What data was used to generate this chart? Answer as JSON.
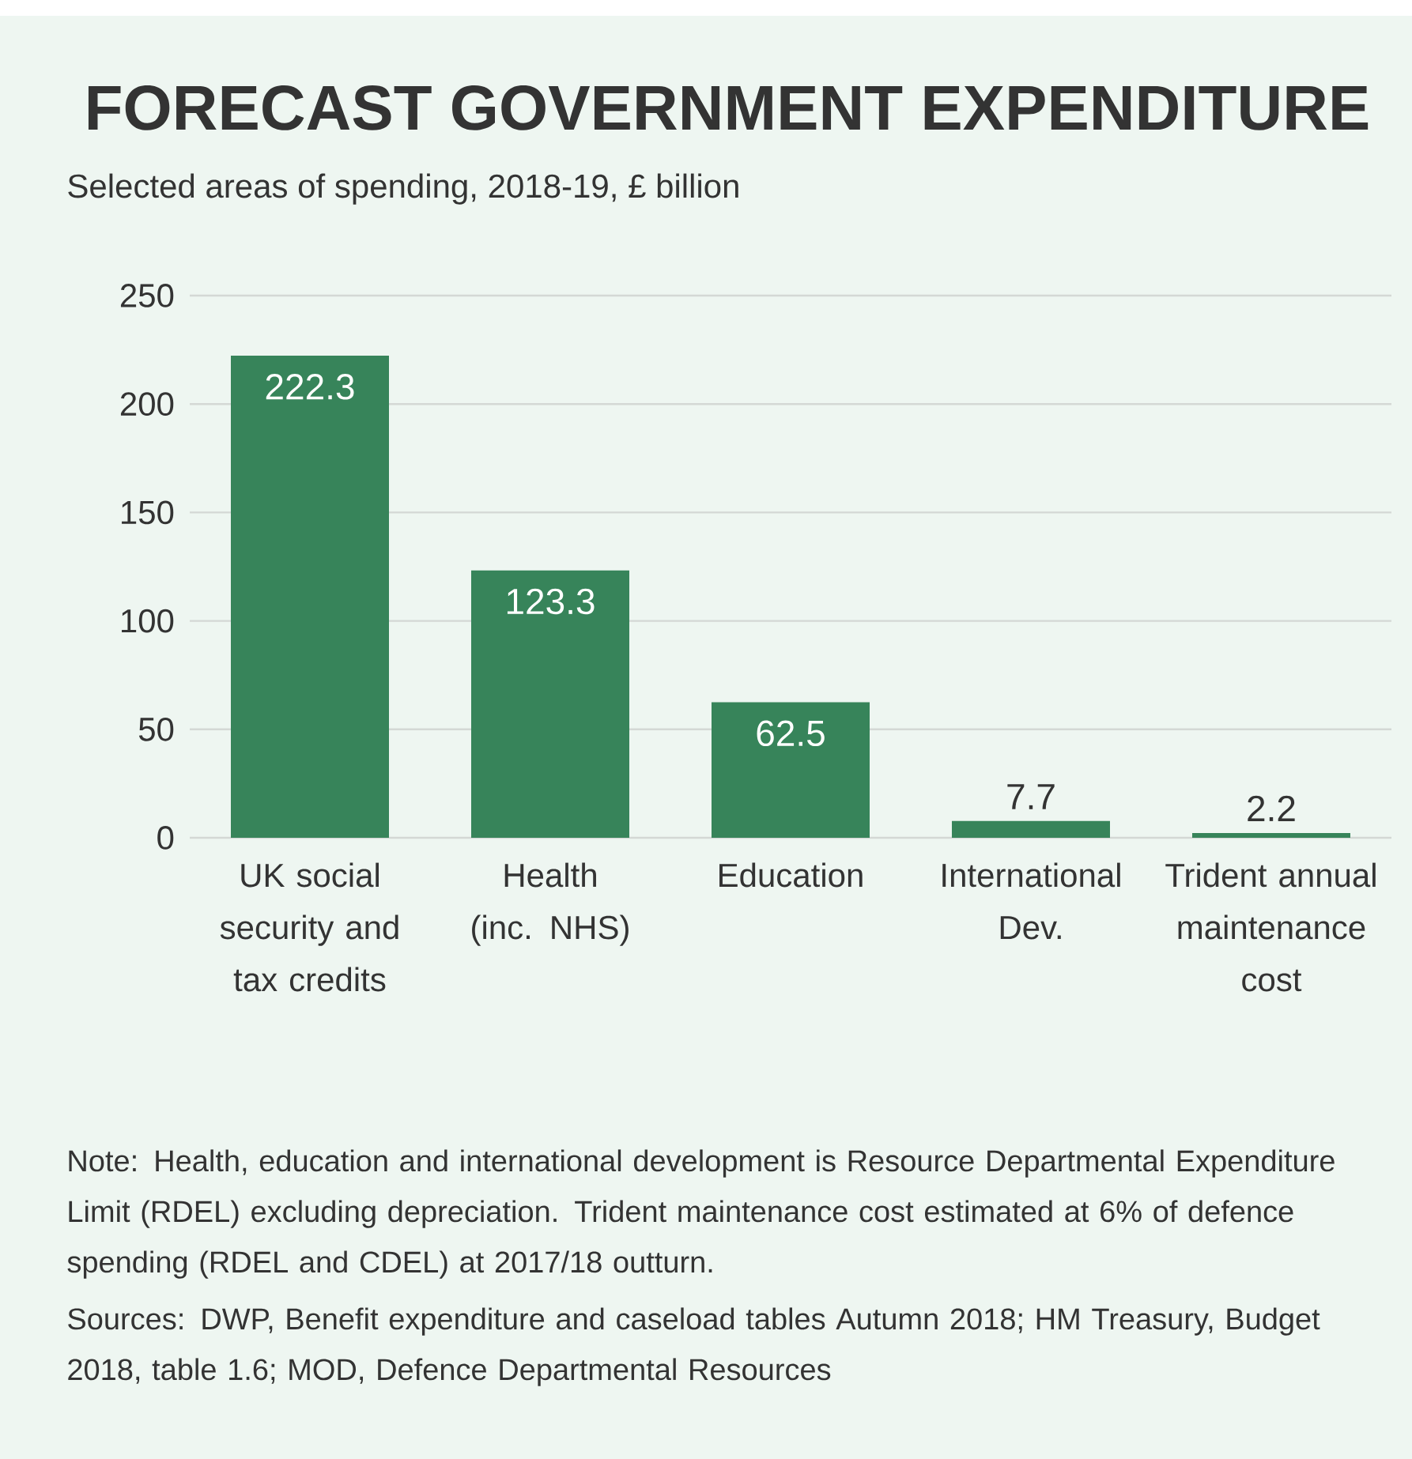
{
  "chart_data": {
    "type": "bar",
    "title": "FORECAST GOVERNMENT EXPENDITURE",
    "subtitle": "Selected areas of spending, 2018-19, £ billion",
    "categories": [
      "UK social security and tax credits",
      "Health (inc. NHS)",
      "Education",
      "International Dev.",
      "Trident annual maintenance cost"
    ],
    "values": [
      222.3,
      123.3,
      62.5,
      7.7,
      2.2
    ],
    "color": "#37845a",
    "ylim": [
      0,
      250
    ],
    "yticks": [
      0,
      50,
      100,
      150,
      200,
      250
    ],
    "grid": "y",
    "data_labels": true,
    "annotations": [
      "Note: Health, education and international development is Resource Departmental Expenditure Limit (RDEL) excluding depreciation. Trident maintenance cost estimated at 6% of defence spending (RDEL and CDEL) at 2017/18 outturn.",
      "Sources: DWP, Benefit expenditure and caseload tables Autumn 2018; HM Treasury, Budget 2018, table 1.6; MOD, Defence Departmental Resources"
    ]
  }
}
